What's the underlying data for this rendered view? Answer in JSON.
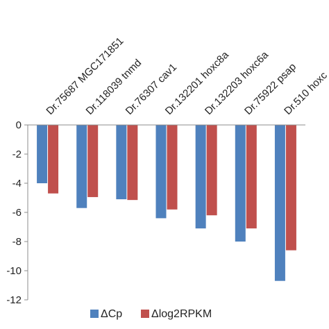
{
  "chart_data": {
    "type": "bar",
    "categories": [
      "Dr.75687 MGC171851",
      "Dr.118039 tnmd",
      "Dr.76307 cav1",
      "Dr.132201 hoxc8a",
      "Dr.132203 hoxc6a",
      "Dr.75922 psap",
      "Dr.510 hoxc"
    ],
    "series": [
      {
        "name": "ΔCp",
        "color": "#4F81BD",
        "values": [
          -4.0,
          -5.7,
          -5.1,
          -6.4,
          -7.1,
          -8.0,
          -10.7
        ]
      },
      {
        "name": "Δlog2RPKM",
        "color": "#C0504D",
        "values": [
          -4.7,
          -4.95,
          -5.15,
          -5.8,
          -6.2,
          -7.1,
          -8.6
        ]
      }
    ],
    "ylim": [
      -12,
      0
    ],
    "yticks": [
      0,
      -2,
      -4,
      -6,
      -8,
      -10,
      -12
    ],
    "legend_position": "bottom",
    "category_labels_position": "top-rotated",
    "grid": false
  }
}
